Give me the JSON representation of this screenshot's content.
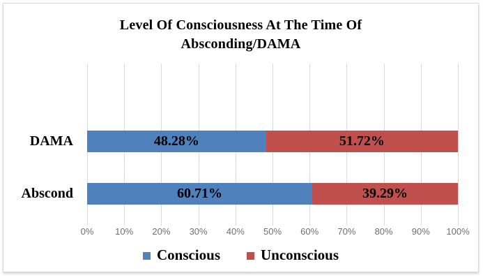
{
  "chart_data": {
    "type": "bar",
    "orientation": "horizontal",
    "stacked": true,
    "title": "Level Of Consciousness At The Time Of Absconding/DAMA",
    "title_lines": [
      "Level Of Consciousness At The Time Of",
      "Absconding/DAMA"
    ],
    "categories": [
      "DAMA",
      "Abscond"
    ],
    "series": [
      {
        "name": "Conscious",
        "color": "#4F81BD",
        "values": [
          48.28,
          60.71
        ],
        "labels": [
          "48.28%",
          "60.71%"
        ]
      },
      {
        "name": "Unconscious",
        "color": "#C0504D",
        "values": [
          51.72,
          39.29
        ],
        "labels": [
          "51.72%",
          "39.29%"
        ]
      }
    ],
    "x_ticks": [
      "0%",
      "10%",
      "20%",
      "30%",
      "40%",
      "50%",
      "60%",
      "70%",
      "80%",
      "90%",
      "100%"
    ],
    "xlim": [
      0,
      100
    ],
    "grid": "vertical-major",
    "legend_position": "bottom",
    "colors": {
      "gridline": "#d9d9d9",
      "tick_text": "#6e6e6e",
      "data_label_text": "#000000",
      "border": "#d9d9d9"
    }
  }
}
